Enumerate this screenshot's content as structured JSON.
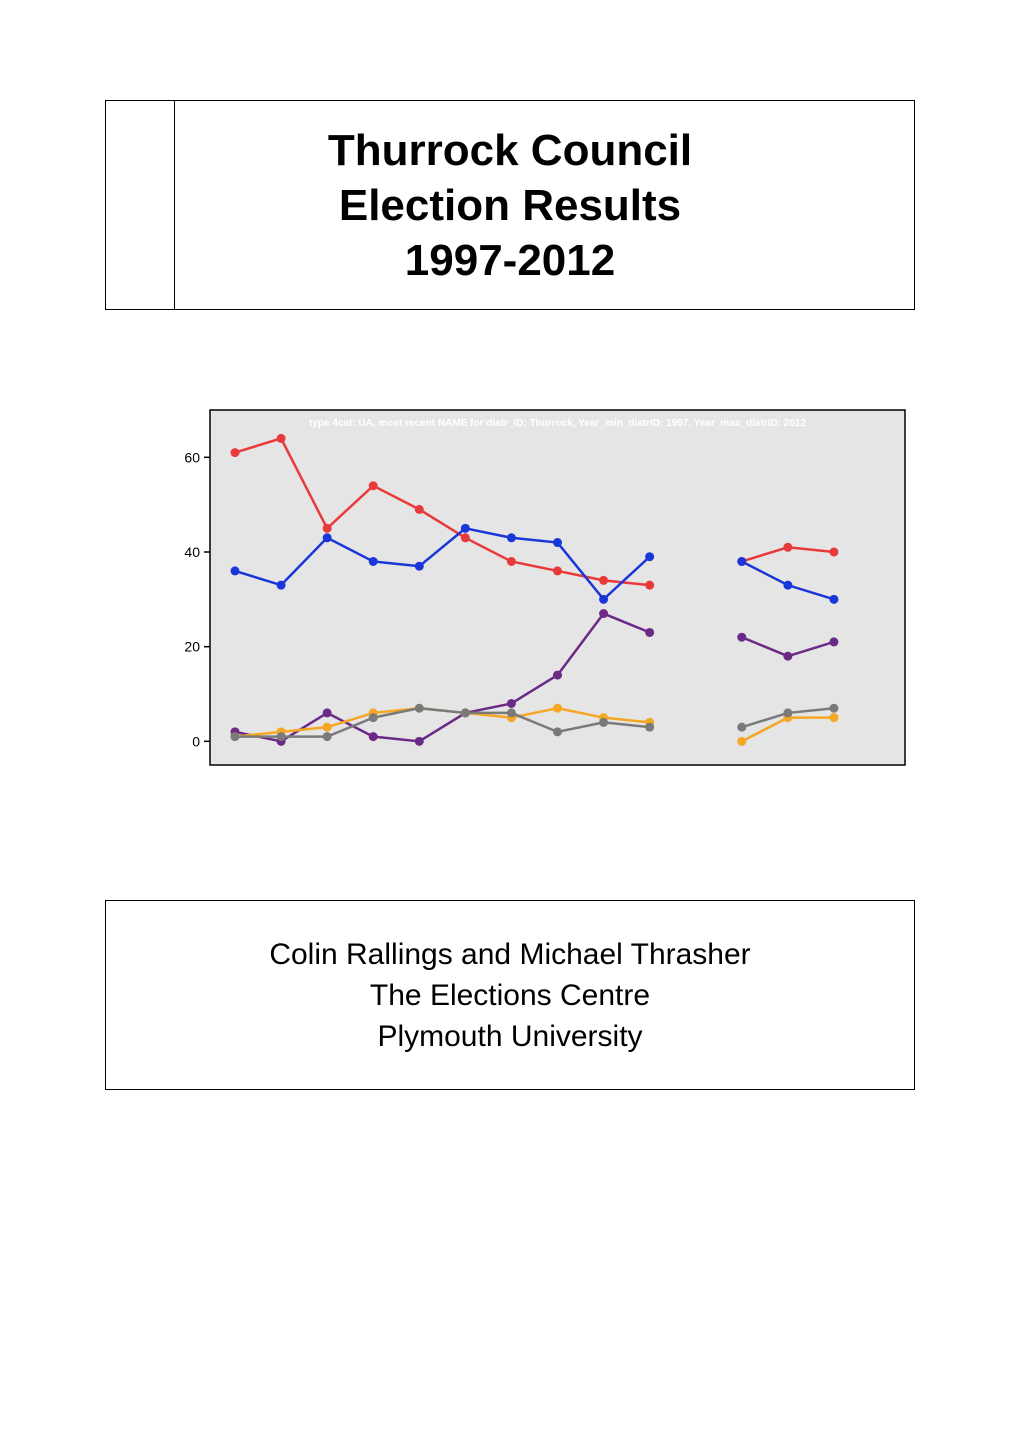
{
  "title": {
    "line1": "Thurrock Council",
    "line2": "Election Results",
    "line3": "1997-2012"
  },
  "chart": {
    "type": "line",
    "caption": "type 4cat: UA, most recent NAME for distr_ID: Thurrock, Year_min_distrID: 1997,   Year_max_distrID: 2012",
    "caption_color": "#ffffff",
    "caption_fontsize": 10,
    "background_color": "#e5e5e5",
    "outer_border_color": "#000000",
    "axis_color": "#000000",
    "tick_fontsize": 14,
    "tick_color": "#000000",
    "xrange": [
      0,
      14
    ],
    "ylim": [
      -5,
      70
    ],
    "yticks": [
      0,
      20,
      40,
      60
    ],
    "ytick_labels": [
      "0",
      "20",
      "40",
      "60"
    ],
    "x_points": [
      0,
      1,
      2,
      3,
      4,
      5,
      6,
      7,
      8,
      9,
      10,
      11,
      12,
      13
    ],
    "line_width": 2.5,
    "marker_radius": 4.5,
    "series": [
      {
        "name": "red",
        "color": "#e83a3a",
        "y": [
          61,
          64,
          45,
          54,
          49,
          43,
          38,
          36,
          34,
          33,
          null,
          38,
          41,
          40
        ]
      },
      {
        "name": "blue",
        "color": "#1a36d8",
        "y": [
          36,
          33,
          43,
          38,
          37,
          45,
          43,
          42,
          30,
          39,
          null,
          38,
          33,
          30
        ]
      },
      {
        "name": "purple",
        "color": "#6a2a86",
        "y": [
          2,
          0,
          6,
          1,
          0,
          6,
          8,
          14,
          27,
          23,
          null,
          22,
          18,
          21
        ]
      },
      {
        "name": "orange",
        "color": "#f5a623",
        "y": [
          1,
          2,
          3,
          6,
          7,
          6,
          5,
          7,
          5,
          4,
          null,
          0,
          5,
          5
        ]
      },
      {
        "name": "grey",
        "color": "#7a7a7a",
        "y": [
          1,
          1,
          1,
          5,
          7,
          6,
          6,
          2,
          4,
          3,
          null,
          3,
          6,
          7
        ]
      }
    ]
  },
  "authors": {
    "line1": "Colin Rallings and Michael Thrasher",
    "line2": "The Elections Centre",
    "line3": "Plymouth University"
  }
}
